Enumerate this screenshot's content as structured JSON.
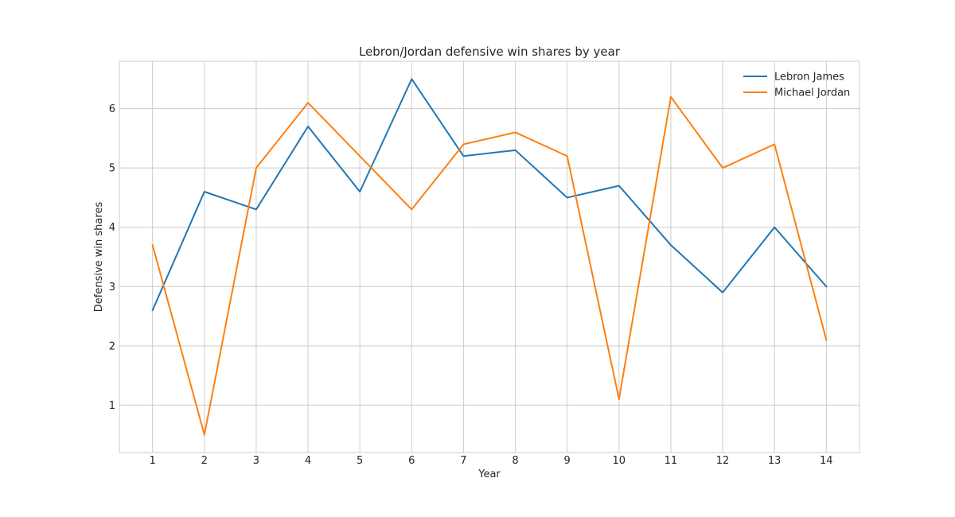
{
  "chart_data": {
    "type": "line",
    "title": "Lebron/Jordan defensive win shares by year",
    "xlabel": "Year",
    "ylabel": "Defensive win shares",
    "x": [
      1,
      2,
      3,
      4,
      5,
      6,
      7,
      8,
      9,
      10,
      11,
      12,
      13,
      14
    ],
    "xticks": [
      "1",
      "2",
      "3",
      "4",
      "5",
      "6",
      "7",
      "8",
      "9",
      "10",
      "11",
      "12",
      "13",
      "14"
    ],
    "yticks": [
      "1",
      "2",
      "3",
      "4",
      "5",
      "6"
    ],
    "xlim": [
      0.36,
      14.64
    ],
    "ylim": [
      0.2,
      6.8
    ],
    "grid": true,
    "legend_position": "top-right",
    "series": [
      {
        "name": "Lebron James",
        "color": "#1f77b4",
        "values": [
          2.6,
          4.6,
          4.3,
          5.7,
          4.6,
          6.5,
          5.2,
          5.3,
          4.5,
          4.7,
          3.7,
          2.9,
          4.0,
          3.0
        ]
      },
      {
        "name": "Michael Jordan",
        "color": "#ff7f0e",
        "values": [
          3.7,
          0.5,
          5.0,
          6.1,
          5.2,
          4.3,
          5.4,
          5.6,
          5.2,
          1.1,
          6.2,
          5.0,
          5.4,
          2.1
        ]
      }
    ]
  }
}
